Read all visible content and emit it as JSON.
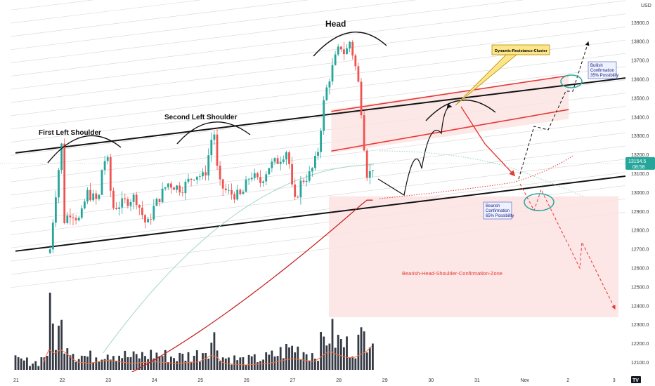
{
  "chart_data": {
    "type": "candlestick",
    "currency": "USD",
    "y_ticks": [
      12100,
      12200,
      12300,
      12400,
      12500,
      12600,
      12700,
      12800,
      12900,
      13000,
      13100,
      13200,
      13300,
      13400,
      13500,
      13600,
      13700,
      13800,
      13900
    ],
    "ylim": [
      12050,
      14020
    ],
    "x_ticks": [
      {
        "label": "21",
        "day": 0
      },
      {
        "label": "22",
        "day": 1
      },
      {
        "label": "23",
        "day": 2
      },
      {
        "label": "24",
        "day": 3
      },
      {
        "label": "25",
        "day": 4
      },
      {
        "label": "26",
        "day": 5
      },
      {
        "label": "27",
        "day": 6
      },
      {
        "label": "28",
        "day": 7
      },
      {
        "label": "29",
        "day": 8
      },
      {
        "label": "30",
        "day": 9
      },
      {
        "label": "31",
        "day": 10
      },
      {
        "label": "Nov",
        "day": 11
      },
      {
        "label": "2",
        "day": 12
      },
      {
        "label": "3",
        "day": 13
      }
    ],
    "last_price": {
      "value": 13154.5,
      "label": "13154.5",
      "time_label": "08:58"
    },
    "ohlc_anchor_closes": [
      [
        0.75,
        12700
      ],
      [
        0.85,
        12950
      ],
      [
        1.0,
        13250
      ],
      [
        1.05,
        12850
      ],
      [
        1.2,
        12900
      ],
      [
        1.4,
        12850
      ],
      [
        1.55,
        13000
      ],
      [
        1.8,
        12950
      ],
      [
        1.9,
        13180
      ],
      [
        2.0,
        13160
      ],
      [
        2.1,
        12920
      ],
      [
        2.3,
        12940
      ],
      [
        2.6,
        12980
      ],
      [
        2.85,
        12820
      ],
      [
        3.0,
        12920
      ],
      [
        3.3,
        13050
      ],
      [
        3.6,
        13020
      ],
      [
        3.9,
        13100
      ],
      [
        4.1,
        13080
      ],
      [
        4.3,
        13350
      ],
      [
        4.4,
        13050
      ],
      [
        4.6,
        13000
      ],
      [
        4.9,
        12980
      ],
      [
        5.1,
        13100
      ],
      [
        5.3,
        13050
      ],
      [
        5.5,
        13140
      ],
      [
        5.7,
        13170
      ],
      [
        5.9,
        13230
      ],
      [
        6.0,
        13020
      ],
      [
        6.05,
        12940
      ],
      [
        6.2,
        13060
      ],
      [
        6.4,
        13100
      ],
      [
        6.55,
        13200
      ],
      [
        6.7,
        13500
      ],
      [
        6.8,
        13600
      ],
      [
        6.95,
        13720
      ],
      [
        7.05,
        13780
      ],
      [
        7.15,
        13730
      ],
      [
        7.25,
        13800
      ],
      [
        7.35,
        13700
      ],
      [
        7.45,
        13560
      ],
      [
        7.5,
        13440
      ],
      [
        7.58,
        13200
      ],
      [
        7.65,
        13050
      ],
      [
        7.72,
        13150
      ],
      [
        7.8,
        13120
      ]
    ],
    "volume_profile": [
      [
        0.0,
        0.15
      ],
      [
        0.5,
        0.12
      ],
      [
        0.7,
        0.3
      ],
      [
        0.75,
        0.95
      ],
      [
        0.85,
        0.5
      ],
      [
        1.0,
        0.65
      ],
      [
        1.3,
        0.25
      ],
      [
        1.6,
        0.2
      ],
      [
        2.0,
        0.3
      ],
      [
        2.5,
        0.2
      ],
      [
        3.0,
        0.25
      ],
      [
        3.5,
        0.2
      ],
      [
        4.0,
        0.25
      ],
      [
        4.3,
        0.5
      ],
      [
        4.5,
        0.2
      ],
      [
        5.0,
        0.15
      ],
      [
        5.5,
        0.2
      ],
      [
        6.0,
        0.35
      ],
      [
        6.5,
        0.25
      ],
      [
        6.8,
        0.6
      ],
      [
        7.0,
        0.45
      ],
      [
        7.3,
        0.35
      ],
      [
        7.6,
        0.55
      ],
      [
        7.7,
        0.8
      ],
      [
        7.8,
        0.5
      ]
    ],
    "channel_lower": [
      [
        0.0,
        12690
      ],
      [
        13.0,
        13080
      ]
    ],
    "channel_upper": [
      [
        0.0,
        13210
      ],
      [
        13.0,
        13620
      ]
    ],
    "horizontal_grid_from": 0,
    "annotations": [
      {
        "id": "first-left-shoulder",
        "text": "First Left Shoulder"
      },
      {
        "id": "second-left-shoulder",
        "text": "Second Left Shoulder"
      },
      {
        "id": "head",
        "text": "Head"
      },
      {
        "id": "dynamic-resistance",
        "text": "Dynamic-Resistance-Cluster"
      },
      {
        "id": "bearish-zone",
        "text": "Bearish-Head-Shoulder-Confirmation-Zone"
      },
      {
        "id": "bullish-confirmation",
        "lines": [
          "Bullish",
          "Confirmation",
          "35% Possibility"
        ]
      },
      {
        "id": "bearish-confirmation",
        "lines": [
          "Bearish",
          "Confirmation",
          "65% Possibility"
        ]
      }
    ],
    "colors": {
      "up": "#26a69a",
      "down": "#ef5350",
      "volume": "#363a45",
      "zone_fill": "#fde2e2",
      "resistance": "#e53935",
      "ma_red": "#c62828",
      "ma_green": "#a5d6c8",
      "callout": "#fde68a",
      "teal_ellipse": "#26a69a"
    }
  }
}
